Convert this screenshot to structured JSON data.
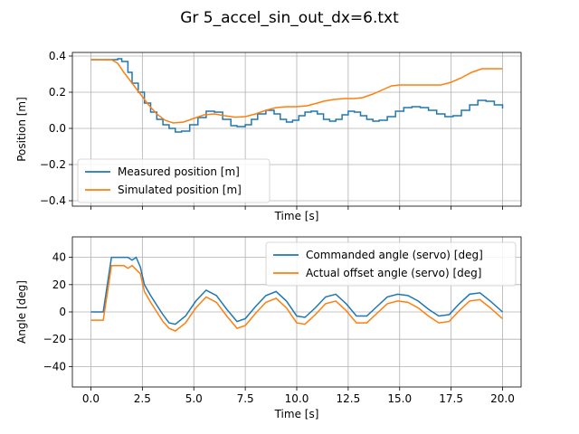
{
  "figure": {
    "title": "Gr 5_accel_sin_out_dx=6.txt"
  },
  "colors": {
    "series_blue": "#1f77b4",
    "series_orange": "#ff7f0e",
    "grid": "#b0b0b0",
    "axes": "#000000"
  },
  "chart_data": [
    {
      "type": "line",
      "title": "",
      "xlabel": "Time [s]",
      "ylabel": "Position [m]",
      "xlim": [
        -0.9,
        20.9
      ],
      "ylim": [
        -0.43,
        0.42
      ],
      "xticks": [
        0,
        2.5,
        5,
        7.5,
        10,
        12.5,
        15,
        17.5,
        20
      ],
      "xticklabels_visible": false,
      "yticks": [
        -0.4,
        -0.2,
        0.0,
        0.2,
        0.4
      ],
      "yticklabels": [
        "−0.4",
        "−0.2",
        "0.0",
        "0.2",
        "0.4"
      ],
      "grid": true,
      "legend_position": "lower-left",
      "series": [
        {
          "name": "Measured position [m]",
          "color": "#1f77b4",
          "step": true,
          "x": [
            0,
            0.3,
            0.6,
            0.9,
            1.1,
            1.3,
            1.5,
            1.8,
            2.0,
            2.3,
            2.6,
            2.9,
            3.2,
            3.5,
            3.8,
            4.1,
            4.4,
            4.8,
            5.2,
            5.6,
            6.0,
            6.4,
            6.8,
            7.1,
            7.5,
            7.8,
            8.1,
            8.5,
            8.9,
            9.2,
            9.5,
            9.8,
            10.1,
            10.4,
            10.7,
            11.0,
            11.3,
            11.6,
            11.9,
            12.2,
            12.5,
            12.8,
            13.1,
            13.4,
            13.7,
            14.0,
            14.4,
            14.8,
            15.2,
            15.6,
            16.0,
            16.4,
            16.8,
            17.2,
            17.6,
            18.0,
            18.4,
            18.8,
            19.2,
            19.6,
            20.0
          ],
          "y": [
            0.38,
            0.38,
            0.38,
            0.38,
            0.38,
            0.385,
            0.37,
            0.31,
            0.25,
            0.2,
            0.14,
            0.09,
            0.05,
            0.02,
            0.0,
            -0.02,
            -0.015,
            0.02,
            0.06,
            0.095,
            0.09,
            0.05,
            0.015,
            0.01,
            0.02,
            0.05,
            0.08,
            0.1,
            0.08,
            0.05,
            0.035,
            0.045,
            0.07,
            0.09,
            0.095,
            0.08,
            0.05,
            0.04,
            0.05,
            0.075,
            0.095,
            0.09,
            0.07,
            0.05,
            0.04,
            0.045,
            0.065,
            0.095,
            0.115,
            0.12,
            0.115,
            0.1,
            0.08,
            0.065,
            0.07,
            0.1,
            0.13,
            0.155,
            0.15,
            0.13,
            0.11
          ]
        },
        {
          "name": "Simulated position [m]",
          "color": "#ff7f0e",
          "step": false,
          "x": [
            0,
            0.5,
            1.0,
            1.3,
            1.6,
            2.0,
            2.4,
            2.8,
            3.2,
            3.6,
            4.0,
            4.5,
            5.0,
            5.5,
            6.0,
            6.5,
            7.0,
            7.5,
            8.0,
            8.5,
            9.0,
            9.5,
            10.0,
            10.5,
            11.0,
            11.3,
            11.8,
            12.3,
            12.8,
            13.2,
            13.7,
            14.2,
            14.6,
            15.0,
            15.5,
            16.0,
            16.5,
            17.0,
            17.5,
            18.0,
            18.5,
            19.0,
            19.5,
            20.0
          ],
          "y": [
            0.38,
            0.38,
            0.38,
            0.36,
            0.31,
            0.25,
            0.19,
            0.13,
            0.08,
            0.045,
            0.03,
            0.035,
            0.055,
            0.075,
            0.08,
            0.07,
            0.062,
            0.065,
            0.08,
            0.1,
            0.115,
            0.12,
            0.12,
            0.125,
            0.14,
            0.15,
            0.16,
            0.165,
            0.165,
            0.17,
            0.19,
            0.215,
            0.235,
            0.24,
            0.24,
            0.24,
            0.24,
            0.24,
            0.255,
            0.28,
            0.31,
            0.33,
            0.33,
            0.33
          ]
        }
      ]
    },
    {
      "type": "line",
      "title": "",
      "xlabel": "Time [s]",
      "ylabel": "Angle [deg]",
      "xlim": [
        -0.9,
        20.9
      ],
      "ylim": [
        -55,
        55
      ],
      "xticks": [
        0,
        2.5,
        5,
        7.5,
        10,
        12.5,
        15,
        17.5,
        20
      ],
      "xticklabels": [
        "0.0",
        "2.5",
        "5.0",
        "7.5",
        "10.0",
        "12.5",
        "15.0",
        "17.5",
        "20.0"
      ],
      "yticks": [
        -40,
        -20,
        0,
        20,
        40
      ],
      "yticklabels": [
        "−40",
        "−20",
        "0",
        "20",
        "40"
      ],
      "grid": true,
      "legend_position": "upper-right",
      "oscillation_note_hidden": true,
      "series": [
        {
          "name": "Commanded angle (servo) [deg]",
          "color": "#1f77b4",
          "x": [
            0,
            0.6,
            1.0,
            1.3,
            1.6,
            1.8,
            2.0,
            2.2,
            2.4,
            2.6,
            2.9,
            3.2,
            3.5,
            3.8,
            4.1,
            4.6,
            5.1,
            5.6,
            6.1,
            6.6,
            7.1,
            7.5,
            8.0,
            8.5,
            9.0,
            9.5,
            10.0,
            10.4,
            10.9,
            11.4,
            11.9,
            12.4,
            12.9,
            13.4,
            13.9,
            14.4,
            14.9,
            15.4,
            15.9,
            16.4,
            16.9,
            17.4,
            17.9,
            18.4,
            18.9,
            19.4,
            20.0
          ],
          "y": [
            0,
            0,
            40,
            40,
            40,
            40,
            38,
            40,
            33,
            20,
            12,
            5,
            -2,
            -8,
            -9,
            -3,
            8,
            16,
            12,
            2,
            -7,
            -5,
            4,
            12,
            15,
            8,
            -3,
            -4,
            3,
            11,
            13,
            6,
            -3,
            -3,
            4,
            11,
            13,
            12,
            8,
            2,
            -3,
            -2,
            6,
            13,
            14,
            8,
            0
          ]
        },
        {
          "name": "Actual offset angle (servo) [deg]",
          "color": "#ff7f0e",
          "x": [
            0,
            0.6,
            0.8,
            1.0,
            1.3,
            1.6,
            1.8,
            2.0,
            2.2,
            2.4,
            2.6,
            2.9,
            3.2,
            3.5,
            3.8,
            4.1,
            4.6,
            5.1,
            5.6,
            6.1,
            6.6,
            7.1,
            7.5,
            8.0,
            8.5,
            9.0,
            9.5,
            10.0,
            10.4,
            10.9,
            11.4,
            11.9,
            12.4,
            12.9,
            13.4,
            13.9,
            14.4,
            14.9,
            15.4,
            15.9,
            16.4,
            16.9,
            17.4,
            17.9,
            18.4,
            18.9,
            19.4,
            20.0
          ],
          "y": [
            -6,
            -6,
            14,
            34,
            34,
            34,
            32,
            34,
            31,
            28,
            15,
            7,
            0,
            -7,
            -12,
            -14,
            -8,
            3,
            11,
            7,
            -3,
            -12,
            -10,
            -1,
            7,
            10,
            3,
            -8,
            -9,
            -2,
            6,
            8,
            1,
            -8,
            -8,
            -1,
            6,
            8,
            7,
            3,
            -3,
            -8,
            -7,
            1,
            8,
            9,
            3,
            -5
          ]
        }
      ]
    }
  ]
}
